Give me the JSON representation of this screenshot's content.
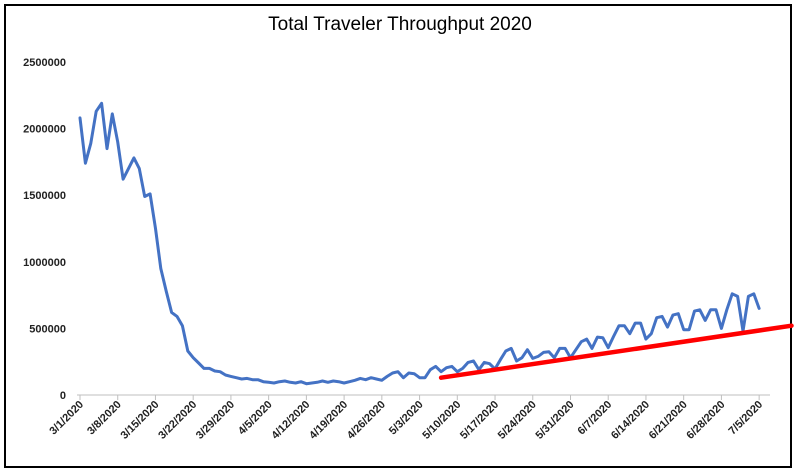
{
  "chart_data": {
    "type": "line",
    "title": "Total Traveler Throughput 2020",
    "xlabel": "",
    "ylabel": "",
    "ylim": [
      0,
      2500000
    ],
    "y_ticks": [
      "0",
      "500000",
      "1000000",
      "1500000",
      "2000000",
      "2500000"
    ],
    "x_ticks": [
      "3/1/2020",
      "3/8/2020",
      "3/15/2020",
      "3/22/2020",
      "3/29/2020",
      "4/5/2020",
      "4/12/2020",
      "4/19/2020",
      "4/26/2020",
      "5/3/2020",
      "5/10/2020",
      "5/17/2020",
      "5/24/2020",
      "5/31/2020",
      "6/7/2020",
      "6/14/2020",
      "6/21/2020",
      "6/28/2020",
      "7/5/2020"
    ],
    "grid": false,
    "legend": "none",
    "series": [
      {
        "color": "#4472C4",
        "start_date": "2020-03-01",
        "values": [
          2080000,
          1740000,
          1890000,
          2130000,
          2190000,
          1850000,
          2110000,
          1900000,
          1620000,
          1700000,
          1780000,
          1700000,
          1490000,
          1510000,
          1250000,
          950000,
          780000,
          620000,
          590000,
          520000,
          330000,
          280000,
          240000,
          200000,
          200000,
          180000,
          175000,
          150000,
          140000,
          130000,
          120000,
          125000,
          115000,
          115000,
          100000,
          95000,
          90000,
          100000,
          105000,
          95000,
          90000,
          100000,
          85000,
          90000,
          95000,
          105000,
          95000,
          105000,
          100000,
          90000,
          100000,
          110000,
          125000,
          115000,
          130000,
          120000,
          110000,
          140000,
          165000,
          175000,
          130000,
          165000,
          160000,
          130000,
          130000,
          190000,
          215000,
          175000,
          205000,
          215000,
          175000,
          200000,
          245000,
          255000,
          190000,
          245000,
          235000,
          195000,
          265000,
          330000,
          350000,
          255000,
          280000,
          340000,
          275000,
          290000,
          320000,
          325000,
          280000,
          350000,
          350000,
          280000,
          340000,
          400000,
          420000,
          350000,
          435000,
          430000,
          355000,
          440000,
          520000,
          520000,
          460000,
          540000,
          540000,
          420000,
          460000,
          580000,
          590000,
          510000,
          600000,
          610000,
          490000,
          490000,
          630000,
          640000,
          560000,
          640000,
          640000,
          500000,
          640000,
          760000,
          740000,
          480000,
          740000,
          760000,
          650000
        ]
      },
      {
        "color": "#FF0000",
        "start_date": "2020-05-07",
        "end_date": "2020-07-11",
        "values": [
          130000,
          520000
        ]
      }
    ]
  }
}
